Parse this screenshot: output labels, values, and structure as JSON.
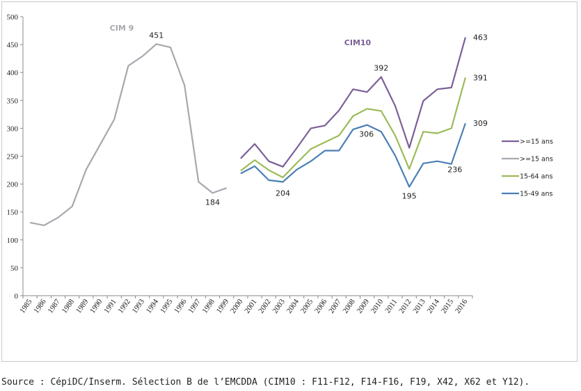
{
  "chart_data": {
    "type": "line",
    "title": "",
    "xlabel": "",
    "ylabel": "",
    "ylim": [
      0,
      500
    ],
    "yticks": [
      0,
      50,
      100,
      150,
      200,
      250,
      300,
      350,
      400,
      450,
      500
    ],
    "x": [
      "1985",
      "1986",
      "1987",
      "1988",
      "1989",
      "1990",
      "1991",
      "1992",
      "1993",
      "1994",
      "1995",
      "1996",
      "1997",
      "1998",
      "1999",
      "2000",
      "2001",
      "2002",
      "2003",
      "2004",
      "2005",
      "2006",
      "2007",
      "2008",
      "2009",
      "2010",
      "2011",
      "2012",
      "2013",
      "2014",
      "2015",
      "2016"
    ],
    "grid": false,
    "legend_position": "right",
    "series": [
      {
        "name": ">=15 ans",
        "color": "#7b5f97",
        "values": [
          null,
          null,
          null,
          null,
          null,
          null,
          null,
          null,
          null,
          null,
          null,
          null,
          null,
          null,
          null,
          246,
          272,
          241,
          231,
          265,
          300,
          305,
          332,
          370,
          365,
          392,
          340,
          265,
          349,
          370,
          373,
          463
        ]
      },
      {
        "name": ">=15 ans",
        "color": "#aaa6ae",
        "values": [
          131,
          126,
          140,
          160,
          226,
          271,
          316,
          412,
          429,
          451,
          445,
          377,
          204,
          184,
          193,
          null,
          null,
          null,
          null,
          null,
          null,
          null,
          null,
          null,
          null,
          null,
          null,
          null,
          null,
          null,
          null,
          null
        ]
      },
      {
        "name": "15-64 ans",
        "color": "#9bbb59",
        "values": [
          null,
          null,
          null,
          null,
          null,
          null,
          null,
          null,
          null,
          null,
          null,
          null,
          null,
          null,
          null,
          224,
          243,
          225,
          212,
          238,
          263,
          275,
          287,
          322,
          335,
          331,
          287,
          227,
          294,
          291,
          300,
          391
        ]
      },
      {
        "name": "15-49 ans",
        "color": "#4a7fb5",
        "values": [
          null,
          null,
          null,
          null,
          null,
          null,
          null,
          null,
          null,
          null,
          null,
          null,
          null,
          null,
          null,
          219,
          232,
          207,
          204,
          226,
          241,
          260,
          260,
          298,
          306,
          294,
          251,
          195,
          237,
          241,
          236,
          309
        ]
      }
    ],
    "annotations": [
      {
        "text": "CIM 9",
        "color": "#aaa6ae"
      },
      {
        "text": "CIM10",
        "color": "#7b5f97"
      }
    ],
    "data_labels": [
      {
        "text": "451",
        "series": 1,
        "x": "1994"
      },
      {
        "text": "184",
        "series": 1,
        "x": "1998"
      },
      {
        "text": "392",
        "series": 0,
        "x": "2010"
      },
      {
        "text": "463",
        "series": 0,
        "x": "2016"
      },
      {
        "text": "391",
        "series": 2,
        "x": "2016"
      },
      {
        "text": "306",
        "series": 3,
        "x": "2009"
      },
      {
        "text": "309",
        "series": 3,
        "x": "2016"
      },
      {
        "text": "204",
        "series": 3,
        "x": "2003"
      },
      {
        "text": "195",
        "series": 3,
        "x": "2012"
      },
      {
        "text": "236",
        "series": 3,
        "x": "2015"
      }
    ]
  },
  "source": "Source : CépiDC/Inserm. Sélection B de l’EMCDDA (CIM10 : F11-F12, F14-F16, F19, X42, X62 et Y12)."
}
